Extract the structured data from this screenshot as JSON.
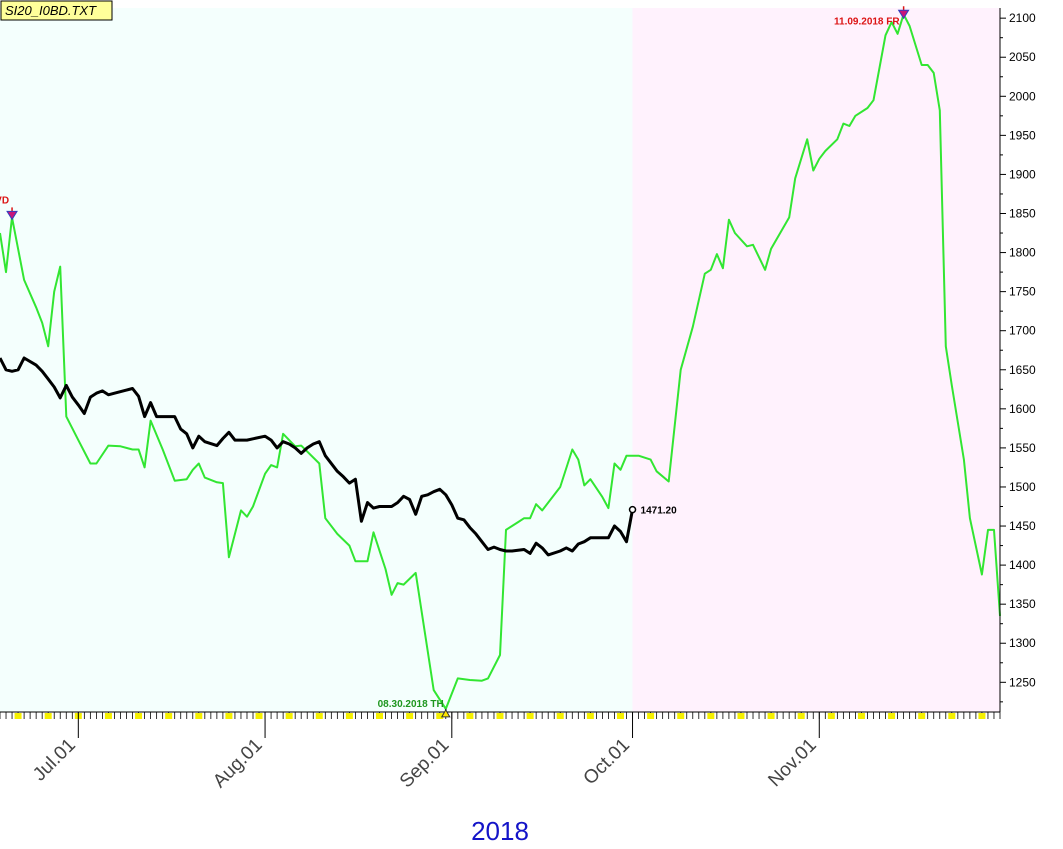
{
  "chart_data": {
    "type": "line",
    "title": "SI20_I0BD.TXT",
    "year_label": "2018",
    "y_ticks": [
      1250,
      1300,
      1350,
      1400,
      1450,
      1500,
      1550,
      1600,
      1650,
      1700,
      1750,
      1800,
      1850,
      1900,
      1950,
      2000,
      2050,
      2100
    ],
    "ylim": [
      1212,
      2113
    ],
    "xlim": [
      0,
      166
    ],
    "x_ticks": [
      {
        "label": "Jul.01",
        "x": 13
      },
      {
        "label": "Aug.01",
        "x": 44
      },
      {
        "label": "Sep.01",
        "x": 75
      },
      {
        "label": "Oct.01",
        "x": 105
      },
      {
        "label": "Nov.01",
        "x": 136
      }
    ],
    "regions": [
      {
        "from": 0,
        "to": 105,
        "color": "#f4fffd"
      },
      {
        "from": 105,
        "to": 166,
        "color": "#fff2fd"
      }
    ],
    "series": [
      {
        "color": "#32e632",
        "points": [
          [
            0,
            1825
          ],
          [
            1,
            1775
          ],
          [
            2,
            1845
          ],
          [
            4,
            1765
          ],
          [
            6,
            1730
          ],
          [
            7,
            1710
          ],
          [
            8,
            1680
          ],
          [
            9,
            1750
          ],
          [
            10,
            1782
          ],
          [
            11,
            1590
          ],
          [
            13,
            1560
          ],
          [
            15,
            1530
          ],
          [
            16,
            1530
          ],
          [
            18,
            1553
          ],
          [
            20,
            1552
          ],
          [
            22,
            1548
          ],
          [
            23,
            1548
          ],
          [
            24,
            1525
          ],
          [
            25,
            1585
          ],
          [
            27,
            1548
          ],
          [
            29,
            1508
          ],
          [
            31,
            1510
          ],
          [
            32,
            1522
          ],
          [
            33,
            1530
          ],
          [
            34,
            1512
          ],
          [
            36,
            1506
          ],
          [
            37,
            1505
          ],
          [
            38,
            1410
          ],
          [
            40,
            1470
          ],
          [
            41,
            1462
          ],
          [
            42,
            1475
          ],
          [
            44,
            1517
          ],
          [
            45,
            1528
          ],
          [
            46,
            1525
          ],
          [
            47,
            1568
          ],
          [
            49,
            1552
          ],
          [
            50,
            1553
          ],
          [
            53,
            1530
          ],
          [
            54,
            1460
          ],
          [
            56,
            1440
          ],
          [
            58,
            1425
          ],
          [
            59,
            1405
          ],
          [
            61,
            1405
          ],
          [
            62,
            1442
          ],
          [
            64,
            1395
          ],
          [
            65,
            1362
          ],
          [
            66,
            1377
          ],
          [
            67,
            1375
          ],
          [
            69,
            1390
          ],
          [
            72,
            1240
          ],
          [
            74,
            1216
          ],
          [
            76,
            1255
          ],
          [
            78,
            1253
          ],
          [
            80,
            1252
          ],
          [
            81,
            1255
          ],
          [
            83,
            1285
          ],
          [
            84,
            1445
          ],
          [
            86,
            1455
          ],
          [
            87,
            1460
          ],
          [
            88,
            1460
          ],
          [
            89,
            1478
          ],
          [
            90,
            1470
          ],
          [
            93,
            1500
          ],
          [
            95,
            1548
          ],
          [
            96,
            1535
          ],
          [
            97,
            1502
          ],
          [
            98,
            1510
          ],
          [
            100,
            1487
          ],
          [
            101,
            1473
          ],
          [
            102,
            1530
          ],
          [
            103,
            1522
          ],
          [
            104,
            1540
          ],
          [
            106,
            1540
          ],
          [
            108,
            1535
          ],
          [
            109,
            1520
          ],
          [
            111,
            1507
          ],
          [
            113,
            1650
          ],
          [
            115,
            1705
          ],
          [
            117,
            1773
          ],
          [
            118,
            1778
          ],
          [
            119,
            1798
          ],
          [
            120,
            1780
          ],
          [
            121,
            1842
          ],
          [
            122,
            1825
          ],
          [
            124,
            1808
          ],
          [
            125,
            1810
          ],
          [
            127,
            1778
          ],
          [
            128,
            1805
          ],
          [
            131,
            1845
          ],
          [
            132,
            1895
          ],
          [
            134,
            1945
          ],
          [
            135,
            1905
          ],
          [
            136,
            1920
          ],
          [
            137,
            1930
          ],
          [
            139,
            1945
          ],
          [
            140,
            1965
          ],
          [
            141,
            1962
          ],
          [
            142,
            1975
          ],
          [
            144,
            1985
          ],
          [
            145,
            1995
          ],
          [
            147,
            2078
          ],
          [
            148,
            2095
          ],
          [
            149,
            2080
          ],
          [
            150,
            2105
          ],
          [
            151,
            2090
          ],
          [
            153,
            2040
          ],
          [
            154,
            2040
          ],
          [
            155,
            2030
          ],
          [
            156,
            1982
          ],
          [
            157,
            1680
          ],
          [
            158,
            1630
          ],
          [
            160,
            1535
          ],
          [
            161,
            1460
          ],
          [
            163,
            1388
          ],
          [
            164,
            1445
          ],
          [
            165,
            1445
          ],
          [
            166,
            1335
          ]
        ]
      },
      {
        "color": "#000000",
        "points": [
          [
            0,
            1665
          ],
          [
            1,
            1650
          ],
          [
            2,
            1648
          ],
          [
            3,
            1650
          ],
          [
            4,
            1665
          ],
          [
            6,
            1656
          ],
          [
            7,
            1648
          ],
          [
            8,
            1638
          ],
          [
            9,
            1628
          ],
          [
            10,
            1614
          ],
          [
            11,
            1630
          ],
          [
            12,
            1615
          ],
          [
            13,
            1605
          ],
          [
            14,
            1594
          ],
          [
            15,
            1615
          ],
          [
            16,
            1620
          ],
          [
            17,
            1623
          ],
          [
            18,
            1618
          ],
          [
            19,
            1620
          ],
          [
            21,
            1624
          ],
          [
            22,
            1626
          ],
          [
            23,
            1616
          ],
          [
            24,
            1590
          ],
          [
            25,
            1608
          ],
          [
            26,
            1590
          ],
          [
            27,
            1590
          ],
          [
            29,
            1590
          ],
          [
            30,
            1574
          ],
          [
            31,
            1568
          ],
          [
            32,
            1550
          ],
          [
            33,
            1565
          ],
          [
            34,
            1558
          ],
          [
            36,
            1553
          ],
          [
            37,
            1562
          ],
          [
            38,
            1570
          ],
          [
            39,
            1560
          ],
          [
            41,
            1560
          ],
          [
            44,
            1565
          ],
          [
            45,
            1560
          ],
          [
            46,
            1550
          ],
          [
            47,
            1558
          ],
          [
            48,
            1555
          ],
          [
            49,
            1550
          ],
          [
            50,
            1543
          ],
          [
            51,
            1550
          ],
          [
            52,
            1555
          ],
          [
            53,
            1558
          ],
          [
            54,
            1540
          ],
          [
            56,
            1520
          ],
          [
            57,
            1513
          ],
          [
            58,
            1505
          ],
          [
            59,
            1510
          ],
          [
            60,
            1456
          ],
          [
            61,
            1480
          ],
          [
            62,
            1473
          ],
          [
            63,
            1475
          ],
          [
            65,
            1475
          ],
          [
            66,
            1480
          ],
          [
            67,
            1488
          ],
          [
            68,
            1484
          ],
          [
            69,
            1465
          ],
          [
            70,
            1488
          ],
          [
            71,
            1490
          ],
          [
            72,
            1494
          ],
          [
            73,
            1497
          ],
          [
            74,
            1490
          ],
          [
            75,
            1477
          ],
          [
            76,
            1460
          ],
          [
            77,
            1458
          ],
          [
            78,
            1448
          ],
          [
            79,
            1440
          ],
          [
            80,
            1430
          ],
          [
            81,
            1420
          ],
          [
            82,
            1423
          ],
          [
            83,
            1420
          ],
          [
            84,
            1418
          ],
          [
            85,
            1418
          ],
          [
            87,
            1420
          ],
          [
            88,
            1415
          ],
          [
            89,
            1428
          ],
          [
            90,
            1422
          ],
          [
            91,
            1413
          ],
          [
            93,
            1418
          ],
          [
            94,
            1422
          ],
          [
            95,
            1418
          ],
          [
            96,
            1427
          ],
          [
            97,
            1430
          ],
          [
            98,
            1435
          ],
          [
            99,
            1435
          ],
          [
            100,
            1435
          ],
          [
            101,
            1435
          ],
          [
            102,
            1450
          ],
          [
            103,
            1443
          ],
          [
            104,
            1430
          ],
          [
            105,
            1471
          ]
        ]
      }
    ],
    "annotations": {
      "high": {
        "text": "11.09.2018 FR",
        "x": 150,
        "y": 2105,
        "color": "#dc1414"
      },
      "low": {
        "text": "08.30.2018 TH",
        "x": 74,
        "y": 1216,
        "color": "#1e961e"
      },
      "left_high": {
        "text": "VD",
        "x": 2,
        "y": 1845,
        "color": "#dc1414"
      },
      "last": {
        "text": "1471.20",
        "x": 105,
        "y": 1471,
        "color": "#000000"
      }
    }
  }
}
